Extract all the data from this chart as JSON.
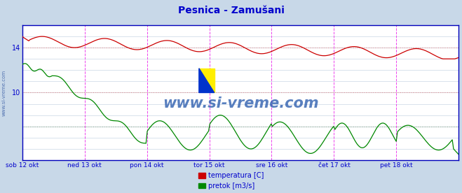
{
  "title": "Pesnica - Zamušani",
  "title_color": "#0000cc",
  "outer_bg_color": "#c8d8e8",
  "plot_bg_color": "#ffffff",
  "border_color": "#0000aa",
  "x_labels": [
    "sob 12 okt",
    "ned 13 okt",
    "pon 14 okt",
    "tor 15 okt",
    "sre 16 okt",
    "čet 17 okt",
    "pet 18 okt"
  ],
  "x_label_color": "#0000cc",
  "grid_color_h_red": "#dd8888",
  "grid_color_h_green": "#88aa88",
  "grid_color_v": "#ff44ff",
  "grid_color_minor": "#aabbcc",
  "y_ticks": [
    10,
    14
  ],
  "y_tick_color": "#0000cc",
  "temp_color": "#cc0000",
  "flow_color": "#008800",
  "watermark": "www.si-vreme.com",
  "watermark_color": "#2255aa",
  "legend_temp": "temperatura [C]",
  "legend_flow": "pretok [m3/s]",
  "n_points": 336,
  "ymin": 4.0,
  "ymax": 16.0
}
